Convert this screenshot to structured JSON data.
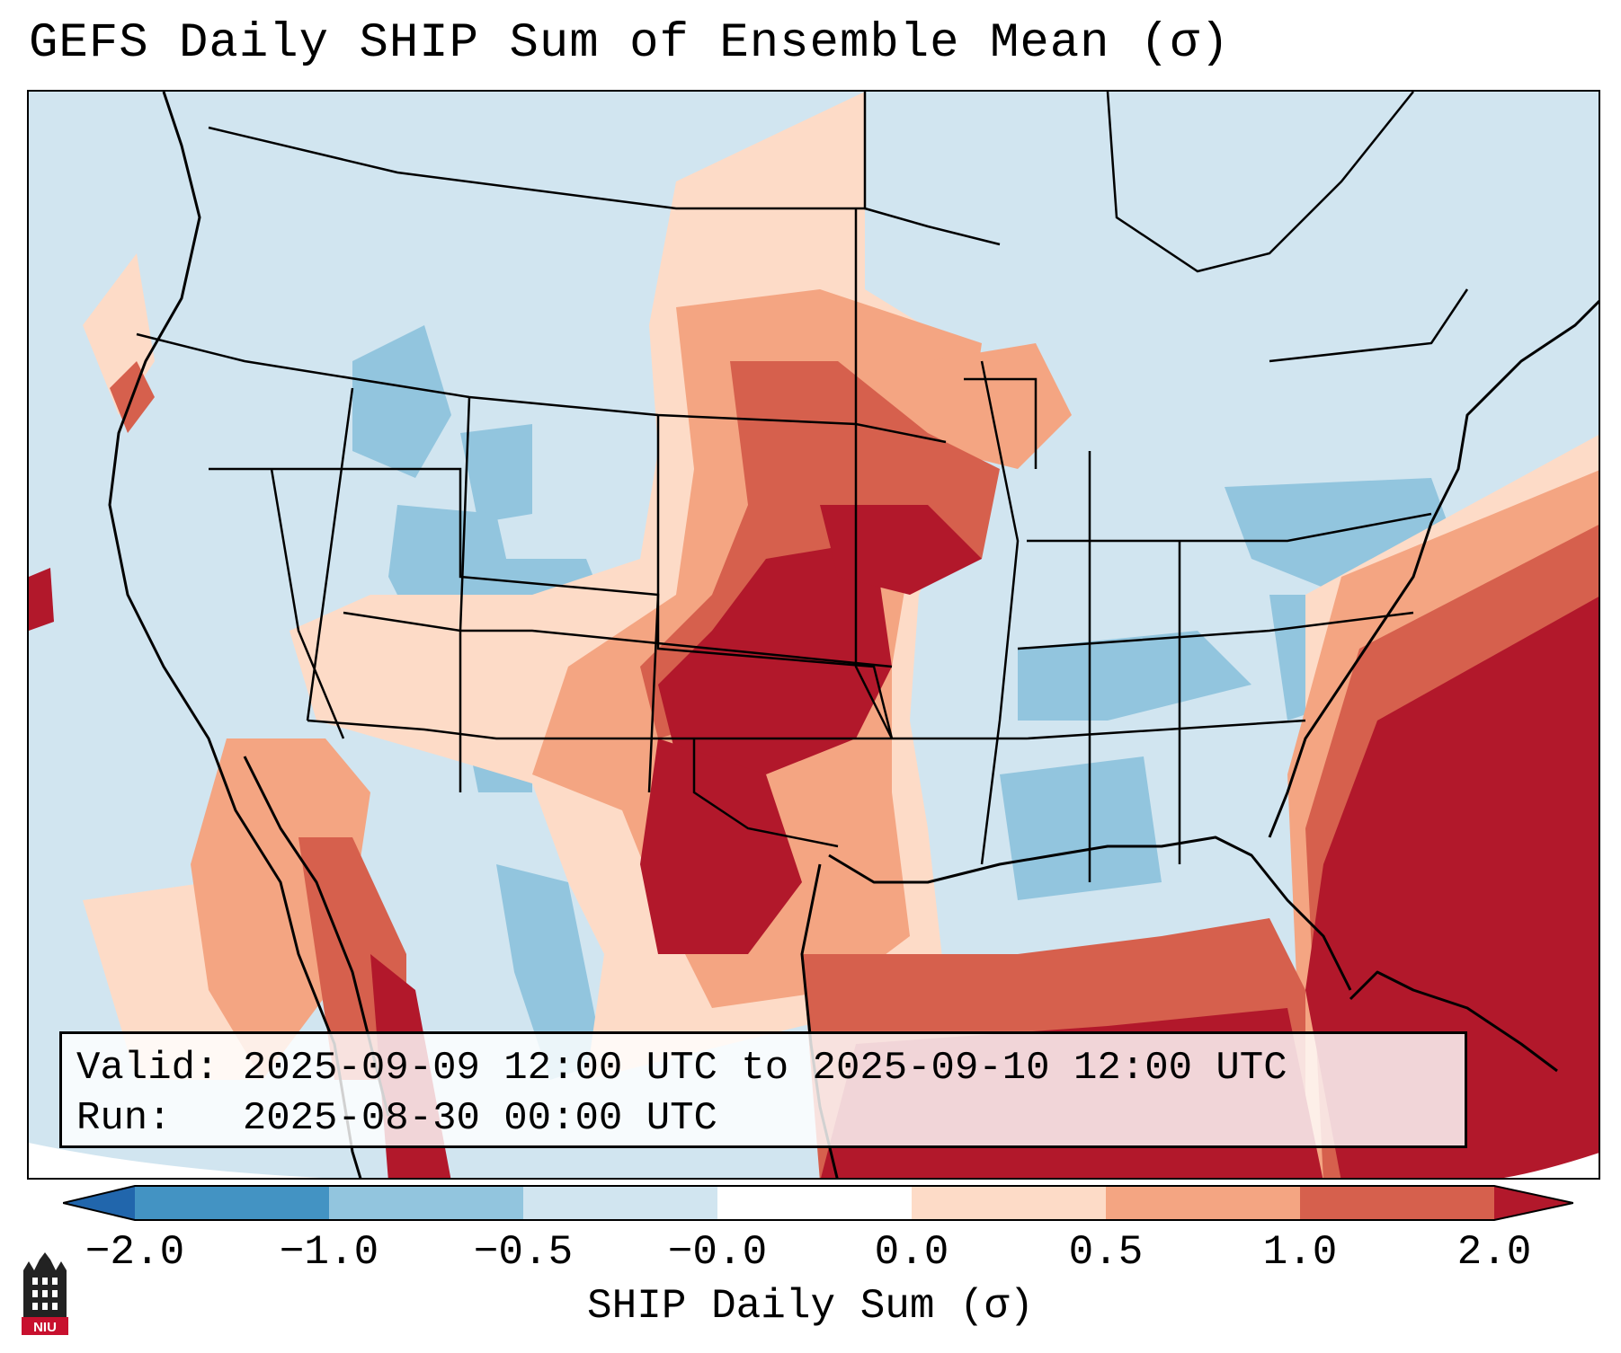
{
  "title": "GEFS Daily SHIP Sum of Ensemble Mean (σ)",
  "info": {
    "valid": "Valid: 2025-09-09 12:00 UTC to 2025-09-10 12:00 UTC",
    "run": "Run:   2025-08-30 00:00 UTC"
  },
  "colorbar": {
    "label": "SHIP Daily Sum (σ)",
    "ticks": [
      "−2.0",
      "−1.0",
      "−0.5",
      "−0.0",
      "0.0",
      "0.5",
      "1.0",
      "2.0"
    ],
    "colors": [
      "#2166ac",
      "#4393c3",
      "#92c5de",
      "#d1e5f0",
      "#ffffff",
      "#fddbc7",
      "#f4a582",
      "#d6604d",
      "#b2182b"
    ]
  },
  "map": {
    "region": "Contiguous United States",
    "ocean_color": "#d1e5f0",
    "high_color": "#b2182b"
  },
  "logo_text": "NIU"
}
